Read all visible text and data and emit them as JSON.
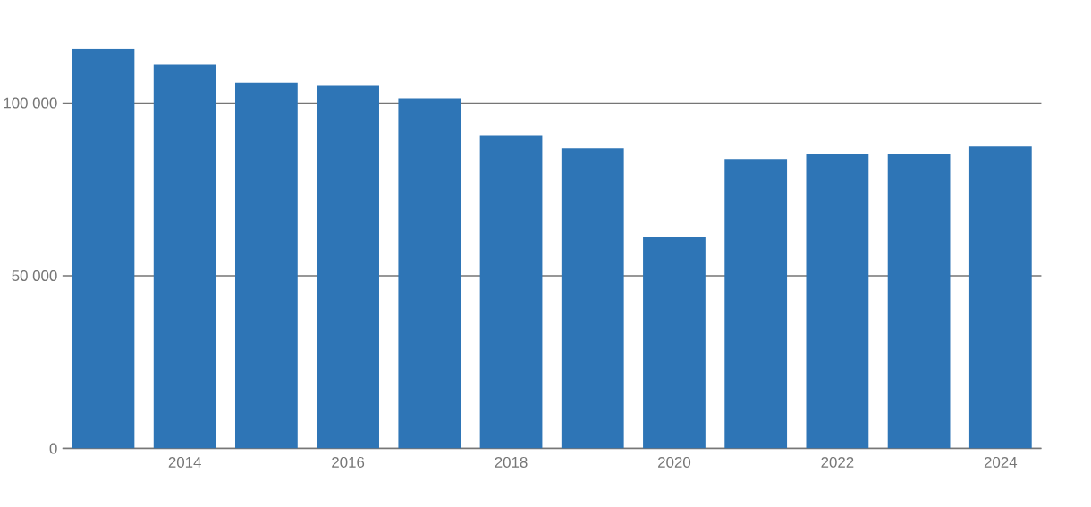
{
  "chart_data": {
    "type": "bar",
    "categories": [
      null,
      "2014",
      null,
      "2016",
      null,
      "2018",
      null,
      "2020",
      null,
      "2022",
      null,
      "2024"
    ],
    "values": [
      115700,
      111100,
      105900,
      105200,
      101300,
      90700,
      86900,
      61100,
      83800,
      85300,
      85300,
      87400
    ],
    "color": "#2e75b6",
    "ylim": [
      0,
      115700
    ],
    "yticks": [
      0,
      {
        "value": 50000,
        "label": "50 000"
      },
      {
        "value": 100000,
        "label": "100 000"
      }
    ],
    "grid": "y"
  }
}
